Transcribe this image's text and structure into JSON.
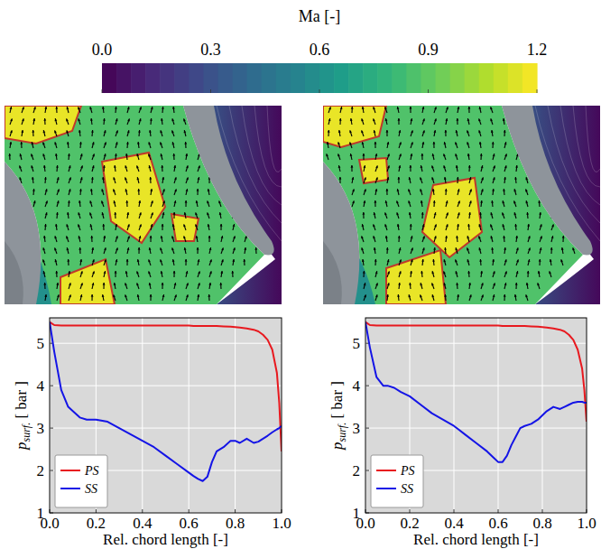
{
  "chart_data": [
    {
      "type": "colorbar",
      "title": "Ma [-]",
      "clim": [
        0,
        1.2
      ],
      "cticks": [
        {
          "value": 0,
          "label": "0.0"
        },
        0.3,
        0.6,
        0.9,
        1.2
      ]
    },
    {
      "type": "line",
      "xlabel": "Rel. chord length [-]",
      "ylabel": {
        "symbol": "p",
        "subscript": "surf.",
        "unit": "[ bar ]"
      },
      "x": [
        0,
        0.02,
        0.05,
        0.08,
        0.1,
        0.13,
        0.16,
        0.2,
        0.25,
        0.3,
        0.35,
        0.4,
        0.45,
        0.5,
        0.55,
        0.6,
        0.62,
        0.64,
        0.66,
        0.68,
        0.7,
        0.72,
        0.75,
        0.78,
        0.8,
        0.82,
        0.85,
        0.88,
        0.9,
        0.92,
        0.94,
        0.96,
        0.98,
        0.99,
        1.0
      ],
      "xlim": [
        0,
        1
      ],
      "xticks": [
        {
          "value": 0,
          "label": "0.0"
        },
        0.2,
        0.4,
        0.6,
        0.8,
        {
          "value": 1,
          "label": "1.0"
        }
      ],
      "ylim": [
        1,
        5.6
      ],
      "yticks": [
        1,
        2,
        3,
        4,
        5
      ],
      "grid": true,
      "legend": "lower left",
      "series": [
        {
          "name": "PS",
          "color": "#e8191f",
          "values": [
            5.5,
            5.43,
            5.42,
            5.42,
            5.42,
            5.42,
            5.42,
            5.42,
            5.42,
            5.42,
            5.42,
            5.42,
            5.42,
            5.42,
            5.42,
            5.42,
            5.41,
            5.41,
            5.41,
            5.41,
            5.41,
            5.41,
            5.4,
            5.39,
            5.38,
            5.37,
            5.35,
            5.32,
            5.28,
            5.2,
            5.08,
            4.85,
            4.3,
            3.6,
            2.45
          ]
        },
        {
          "name": "SS",
          "color": "#1414e6",
          "values": [
            5.5,
            4.8,
            3.9,
            3.5,
            3.4,
            3.25,
            3.2,
            3.2,
            3.15,
            3.0,
            2.85,
            2.7,
            2.55,
            2.35,
            2.15,
            1.95,
            1.87,
            1.8,
            1.75,
            1.85,
            2.2,
            2.45,
            2.55,
            2.7,
            2.7,
            2.65,
            2.75,
            2.65,
            2.68,
            2.75,
            2.82,
            2.9,
            2.97,
            3.0,
            3.05
          ]
        }
      ]
    },
    {
      "type": "line",
      "xlabel": "Rel. chord length [-]",
      "ylabel": {
        "symbol": "p",
        "subscript": "surf.",
        "unit": "[ bar ]"
      },
      "x": [
        0,
        0.02,
        0.05,
        0.08,
        0.1,
        0.13,
        0.16,
        0.2,
        0.25,
        0.3,
        0.35,
        0.4,
        0.45,
        0.5,
        0.55,
        0.6,
        0.62,
        0.64,
        0.66,
        0.68,
        0.7,
        0.72,
        0.75,
        0.78,
        0.8,
        0.82,
        0.85,
        0.88,
        0.9,
        0.92,
        0.94,
        0.96,
        0.98,
        0.99,
        1.0
      ],
      "xlim": [
        0,
        1
      ],
      "xticks": [
        {
          "value": 0,
          "label": "0.0"
        },
        0.2,
        0.4,
        0.6,
        0.8,
        {
          "value": 1,
          "label": "1.0"
        }
      ],
      "ylim": [
        1,
        5.6
      ],
      "yticks": [
        1,
        2,
        3,
        4,
        5
      ],
      "grid": true,
      "legend": "lower left",
      "series": [
        {
          "name": "PS",
          "color": "#e8191f",
          "values": [
            5.5,
            5.43,
            5.42,
            5.42,
            5.42,
            5.42,
            5.42,
            5.42,
            5.42,
            5.42,
            5.42,
            5.42,
            5.42,
            5.42,
            5.42,
            5.42,
            5.41,
            5.41,
            5.41,
            5.41,
            5.41,
            5.41,
            5.4,
            5.39,
            5.38,
            5.37,
            5.35,
            5.32,
            5.28,
            5.2,
            5.08,
            4.85,
            4.4,
            3.9,
            3.15
          ]
        },
        {
          "name": "SS",
          "color": "#1414e6",
          "values": [
            5.5,
            4.9,
            4.2,
            4.0,
            4.0,
            3.95,
            3.85,
            3.75,
            3.55,
            3.35,
            3.2,
            3.05,
            2.85,
            2.65,
            2.45,
            2.2,
            2.2,
            2.35,
            2.6,
            2.8,
            3.0,
            3.05,
            3.1,
            3.2,
            3.3,
            3.4,
            3.5,
            3.45,
            3.5,
            3.55,
            3.6,
            3.62,
            3.62,
            3.6,
            3.6
          ]
        }
      ]
    }
  ]
}
